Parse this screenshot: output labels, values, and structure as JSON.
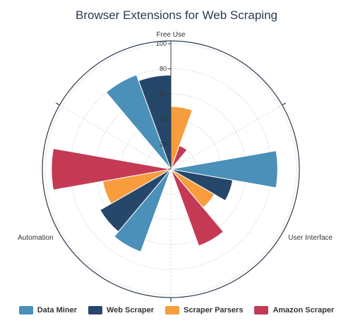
{
  "chart_data": {
    "type": "polar-bar",
    "title": "Browser Extensions for Web Scraping",
    "categories": [
      "Free Use",
      "User Interface",
      "Automation"
    ],
    "radial_axis": {
      "range": [
        0,
        100
      ],
      "ticks": [
        0,
        20,
        40,
        60,
        80,
        100
      ]
    },
    "grid": true,
    "legend_position": "bottom",
    "series": [
      {
        "name": "Data Miner",
        "color": "#4a90b8",
        "values": [
          80,
          85,
          70
        ]
      },
      {
        "name": "Web Scraper",
        "color": "#25476a",
        "values": [
          75,
          50,
          65
        ]
      },
      {
        "name": "Scraper Parsers",
        "color": "#f79d3e",
        "values": [
          50,
          40,
          55
        ]
      },
      {
        "name": "Amazon Scraper",
        "color": "#c43a55",
        "values": [
          20,
          65,
          95
        ]
      }
    ]
  }
}
